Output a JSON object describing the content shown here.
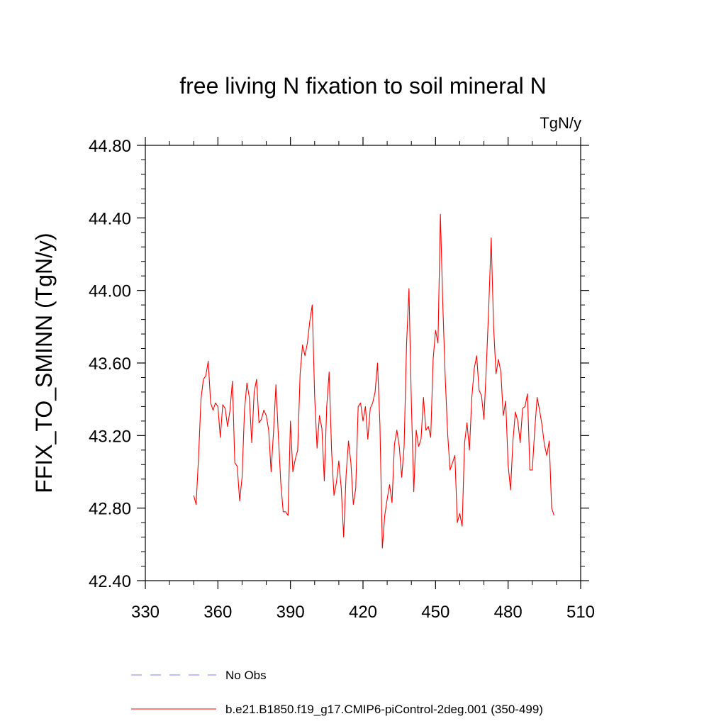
{
  "chart_data": {
    "type": "line",
    "title": "free living N fixation to soil mineral N",
    "units": "TgN/y",
    "ylabel": "FFIX_TO_SMINN  (TgN/y)",
    "xlabel": "",
    "xlim": [
      330,
      510
    ],
    "ylim": [
      42.4,
      44.8
    ],
    "x_ticks": [
      330,
      360,
      390,
      420,
      450,
      480,
      510
    ],
    "y_ticks": [
      42.4,
      42.8,
      43.2,
      43.6,
      44.0,
      44.4,
      44.8
    ],
    "x_tick_labels": [
      "330",
      "360",
      "390",
      "420",
      "450",
      "480",
      "510"
    ],
    "y_tick_labels": [
      "42.40",
      "42.80",
      "43.20",
      "43.60",
      "44.00",
      "44.40",
      "44.80"
    ],
    "grid": false,
    "legend": {
      "position": "bottom",
      "entries": [
        {
          "label": "No Obs",
          "color": "#8080ff",
          "style": "dashed"
        },
        {
          "label": "b.e21.B1850.f19_g17.CMIP6-piControl-2deg.001 (350-499)",
          "color": "#ff0000",
          "style": "solid"
        }
      ]
    },
    "series": [
      {
        "name": "b.e21.B1850.f19_g17.CMIP6-piControl-2deg.001 (350-499)",
        "color": "#ff0000",
        "x_start": 350,
        "x_step": 1,
        "values": [
          42.87,
          42.82,
          43.08,
          43.4,
          43.51,
          43.53,
          43.61,
          43.38,
          43.34,
          43.38,
          43.36,
          43.19,
          43.37,
          43.35,
          43.25,
          43.34,
          43.5,
          43.05,
          43.03,
          42.84,
          42.97,
          43.34,
          43.49,
          43.41,
          43.16,
          43.44,
          43.51,
          43.27,
          43.29,
          43.34,
          43.31,
          43.23,
          43.0,
          43.22,
          43.48,
          43.2,
          42.94,
          42.78,
          42.78,
          42.76,
          43.28,
          43.0,
          43.07,
          43.12,
          43.54,
          43.7,
          43.64,
          43.71,
          43.83,
          43.92,
          43.42,
          43.13,
          43.31,
          43.24,
          42.95,
          43.36,
          43.55,
          43.12,
          42.87,
          42.94,
          43.06,
          42.91,
          42.64,
          42.98,
          43.17,
          43.05,
          42.82,
          42.91,
          43.36,
          43.38,
          43.28,
          43.36,
          43.18,
          43.35,
          43.38,
          43.44,
          43.6,
          43.26,
          42.58,
          42.76,
          42.85,
          42.93,
          42.83,
          43.15,
          43.23,
          43.14,
          42.97,
          43.14,
          43.7,
          44.01,
          43.38,
          42.89,
          43.23,
          43.14,
          43.18,
          43.41,
          43.23,
          43.25,
          43.19,
          43.62,
          43.78,
          43.71,
          44.42,
          43.92,
          43.52,
          43.21,
          43.01,
          43.05,
          43.09,
          42.72,
          42.77,
          42.7,
          43.16,
          43.27,
          43.12,
          43.41,
          43.57,
          43.64,
          43.45,
          43.42,
          43.29,
          43.58,
          43.91,
          44.29,
          43.8,
          43.54,
          43.62,
          43.55,
          43.31,
          43.39,
          43.04,
          42.9,
          43.17,
          43.33,
          43.28,
          43.16,
          43.35,
          43.36,
          43.43,
          43.01,
          43.01,
          43.23,
          43.41,
          43.34,
          43.26,
          43.15,
          43.09,
          43.17,
          42.8,
          42.76
        ]
      }
    ]
  }
}
